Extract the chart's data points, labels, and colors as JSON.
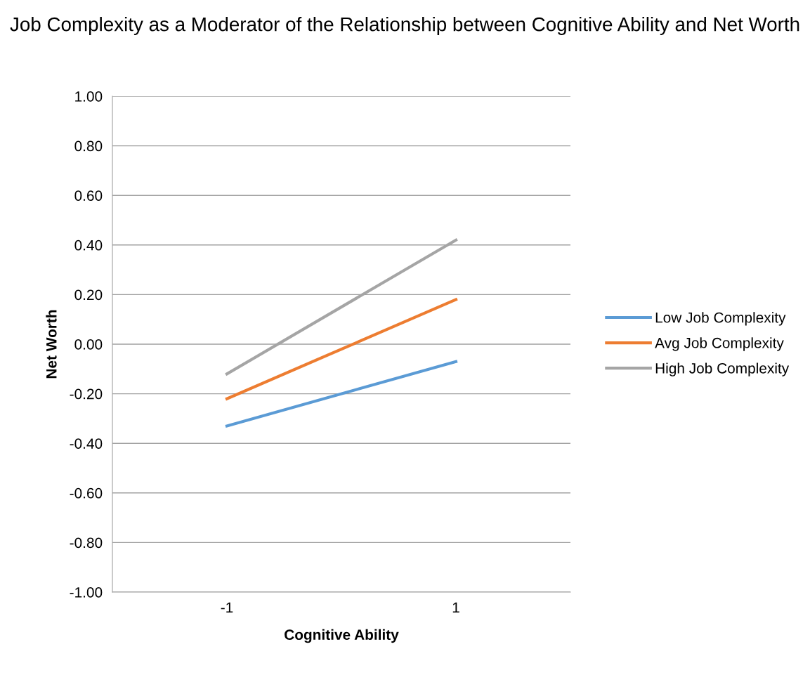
{
  "chart_data": {
    "type": "line",
    "title": "Job Complexity as a Moderator of the Relationship between Cognitive Ability and Net Worth",
    "xlabel": "Cognitive Ability",
    "ylabel": "Net Worth",
    "categories": [
      "-1",
      "1"
    ],
    "series": [
      {
        "name": "Low Job Complexity",
        "color": "#5b9bd5",
        "values": [
          -0.33,
          -0.07
        ]
      },
      {
        "name": "Avg Job Complexity",
        "color": "#ed7d31",
        "values": [
          -0.22,
          0.18
        ]
      },
      {
        "name": "High Job Complexity",
        "color": "#a5a5a5",
        "values": [
          -0.12,
          0.42
        ]
      }
    ],
    "ylim": [
      -1,
      1
    ],
    "yticks": [
      {
        "value": -1,
        "label": "-1.00"
      },
      {
        "value": -0.8,
        "label": "-0.80"
      },
      {
        "value": -0.6,
        "label": "-0.60"
      },
      {
        "value": -0.4,
        "label": "-0.40"
      },
      {
        "value": -0.2,
        "label": "-0.20"
      },
      {
        "value": 0,
        "label": "0.00"
      },
      {
        "value": 0.2,
        "label": "0.20"
      },
      {
        "value": 0.4,
        "label": "0.40"
      },
      {
        "value": 0.6,
        "label": "0.60"
      },
      {
        "value": 0.8,
        "label": "0.80"
      },
      {
        "value": 1,
        "label": "1.00"
      }
    ],
    "grid": "y",
    "legend": "right",
    "marker": "none",
    "line_style": "solid"
  }
}
